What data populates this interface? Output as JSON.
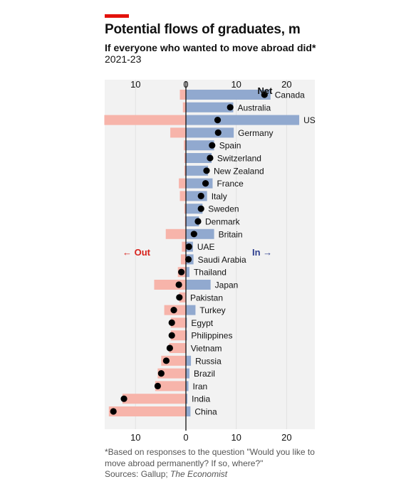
{
  "header": {
    "title": "Potential flows of graduates, m",
    "subtitle": "If everyone who wanted to move abroad did*",
    "dates": "2021-23"
  },
  "footer": {
    "footnote": "*Based on responses to the question \"Would you like to move abroad permanently? If so, where?\"",
    "sources_prefix": "Sources: Gallup; ",
    "sources_italic": "The Economist"
  },
  "colors": {
    "out": "#f7b4aa",
    "in": "#91a9cf",
    "net": "#000000",
    "out_label": "#d7221c",
    "in_label": "#2e3f8f",
    "grid": "#e2e2e2",
    "band": "#f2f2f2",
    "accent": "#e3120b"
  },
  "chart_data": {
    "type": "bar",
    "orientation": "horizontal",
    "categories": [
      "Canada",
      "Australia",
      "US",
      "Germany",
      "Spain",
      "Switzerland",
      "New Zealand",
      "France",
      "Italy",
      "Sweden",
      "Denmark",
      "Britain",
      "UAE",
      "Saudi Arabia",
      "Thailand",
      "Japan",
      "Pakistan",
      "Turkey",
      "Egypt",
      "Philippines",
      "Vietnam",
      "Russia",
      "Brazil",
      "Iran",
      "India",
      "China"
    ],
    "series": [
      {
        "name": "Out",
        "values": [
          -1.2,
          -0.6,
          -16.2,
          -3.1,
          -0.4,
          -0.3,
          -0.3,
          -1.4,
          -1.2,
          -0.3,
          -0.2,
          -4.0,
          -0.8,
          -1.0,
          -1.6,
          -6.3,
          -1.3,
          -4.3,
          -3.0,
          -3.0,
          -3.3,
          -4.9,
          -5.6,
          -6.1,
          -12.6,
          -15.3
        ]
      },
      {
        "name": "In",
        "values": [
          16.8,
          9.4,
          22.5,
          9.5,
          5.6,
          5.1,
          4.4,
          5.3,
          4.2,
          3.3,
          2.6,
          5.6,
          1.4,
          1.5,
          0.7,
          4.9,
          0.0,
          1.9,
          0.2,
          0.2,
          0.1,
          1.0,
          0.7,
          0.5,
          0.3,
          0.9
        ]
      },
      {
        "name": "Net",
        "values": [
          15.6,
          8.8,
          6.3,
          6.4,
          5.2,
          4.8,
          4.1,
          3.9,
          3.0,
          3.0,
          2.4,
          1.6,
          0.6,
          0.5,
          -0.9,
          -1.4,
          -1.3,
          -2.4,
          -2.8,
          -2.8,
          -3.2,
          -3.9,
          -4.9,
          -5.6,
          -12.3,
          -14.4
        ]
      }
    ],
    "xlim": [
      -17,
      26
    ],
    "x_ticks": [
      -10,
      0,
      10,
      20
    ],
    "x_tick_labels": [
      "10",
      "0",
      "10",
      "20"
    ],
    "legend": {
      "net": "Net",
      "out": "← Out",
      "in": "In →"
    }
  }
}
